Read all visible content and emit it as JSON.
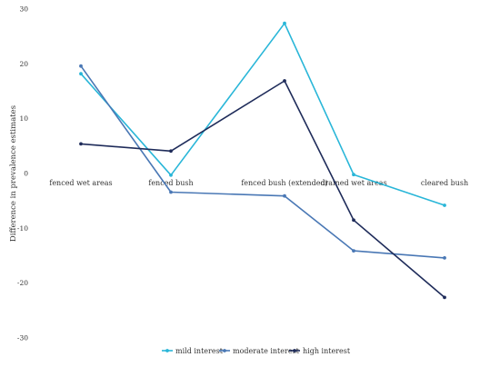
{
  "chart_data": {
    "type": "line",
    "categories": [
      "fenced wet areas",
      "fenced bush",
      "fenced bush (extended)",
      "drained wet areas",
      "cleared bush"
    ],
    "ylabel": "Difference in prevalence estimates",
    "xlabel": "",
    "title": "",
    "ylim": [
      -30,
      30
    ],
    "yticks": [
      30,
      20,
      10,
      0,
      -10,
      -20,
      -30
    ],
    "grid": false,
    "legend_position": "bottom",
    "series": [
      {
        "name": "mild interest",
        "color": "#29b6d8",
        "values": [
          18.2,
          -0.3,
          27.4,
          -0.2,
          -5.8
        ]
      },
      {
        "name": "moderate interest",
        "color": "#4a78b5",
        "values": [
          19.6,
          -3.4,
          -4.1,
          -14.1,
          -15.4
        ]
      },
      {
        "name": "high interest",
        "color": "#1f2c5a",
        "values": [
          5.4,
          4.1,
          16.9,
          -8.5,
          -22.6
        ]
      }
    ]
  }
}
